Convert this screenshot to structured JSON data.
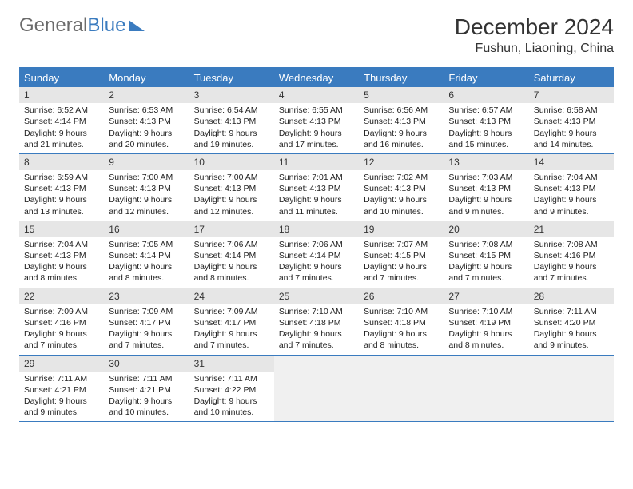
{
  "logo": {
    "part1": "General",
    "part2": "Blue"
  },
  "title": "December 2024",
  "location": "Fushun, Liaoning, China",
  "colors": {
    "accent": "#3a7bbf",
    "header_bg": "#e6e6e6",
    "empty_bg": "#f0f0f0",
    "text": "#222222",
    "logo_gray": "#6b6b6b"
  },
  "typography": {
    "title_fontsize": 28,
    "location_fontsize": 16,
    "dow_fontsize": 13,
    "body_fontsize": 10.5
  },
  "dow": [
    "Sunday",
    "Monday",
    "Tuesday",
    "Wednesday",
    "Thursday",
    "Friday",
    "Saturday"
  ],
  "weeks": [
    [
      {
        "n": "1",
        "sunrise": "Sunrise: 6:52 AM",
        "sunset": "Sunset: 4:14 PM",
        "daylight": "Daylight: 9 hours and 21 minutes."
      },
      {
        "n": "2",
        "sunrise": "Sunrise: 6:53 AM",
        "sunset": "Sunset: 4:13 PM",
        "daylight": "Daylight: 9 hours and 20 minutes."
      },
      {
        "n": "3",
        "sunrise": "Sunrise: 6:54 AM",
        "sunset": "Sunset: 4:13 PM",
        "daylight": "Daylight: 9 hours and 19 minutes."
      },
      {
        "n": "4",
        "sunrise": "Sunrise: 6:55 AM",
        "sunset": "Sunset: 4:13 PM",
        "daylight": "Daylight: 9 hours and 17 minutes."
      },
      {
        "n": "5",
        "sunrise": "Sunrise: 6:56 AM",
        "sunset": "Sunset: 4:13 PM",
        "daylight": "Daylight: 9 hours and 16 minutes."
      },
      {
        "n": "6",
        "sunrise": "Sunrise: 6:57 AM",
        "sunset": "Sunset: 4:13 PM",
        "daylight": "Daylight: 9 hours and 15 minutes."
      },
      {
        "n": "7",
        "sunrise": "Sunrise: 6:58 AM",
        "sunset": "Sunset: 4:13 PM",
        "daylight": "Daylight: 9 hours and 14 minutes."
      }
    ],
    [
      {
        "n": "8",
        "sunrise": "Sunrise: 6:59 AM",
        "sunset": "Sunset: 4:13 PM",
        "daylight": "Daylight: 9 hours and 13 minutes."
      },
      {
        "n": "9",
        "sunrise": "Sunrise: 7:00 AM",
        "sunset": "Sunset: 4:13 PM",
        "daylight": "Daylight: 9 hours and 12 minutes."
      },
      {
        "n": "10",
        "sunrise": "Sunrise: 7:00 AM",
        "sunset": "Sunset: 4:13 PM",
        "daylight": "Daylight: 9 hours and 12 minutes."
      },
      {
        "n": "11",
        "sunrise": "Sunrise: 7:01 AM",
        "sunset": "Sunset: 4:13 PM",
        "daylight": "Daylight: 9 hours and 11 minutes."
      },
      {
        "n": "12",
        "sunrise": "Sunrise: 7:02 AM",
        "sunset": "Sunset: 4:13 PM",
        "daylight": "Daylight: 9 hours and 10 minutes."
      },
      {
        "n": "13",
        "sunrise": "Sunrise: 7:03 AM",
        "sunset": "Sunset: 4:13 PM",
        "daylight": "Daylight: 9 hours and 9 minutes."
      },
      {
        "n": "14",
        "sunrise": "Sunrise: 7:04 AM",
        "sunset": "Sunset: 4:13 PM",
        "daylight": "Daylight: 9 hours and 9 minutes."
      }
    ],
    [
      {
        "n": "15",
        "sunrise": "Sunrise: 7:04 AM",
        "sunset": "Sunset: 4:13 PM",
        "daylight": "Daylight: 9 hours and 8 minutes."
      },
      {
        "n": "16",
        "sunrise": "Sunrise: 7:05 AM",
        "sunset": "Sunset: 4:14 PM",
        "daylight": "Daylight: 9 hours and 8 minutes."
      },
      {
        "n": "17",
        "sunrise": "Sunrise: 7:06 AM",
        "sunset": "Sunset: 4:14 PM",
        "daylight": "Daylight: 9 hours and 8 minutes."
      },
      {
        "n": "18",
        "sunrise": "Sunrise: 7:06 AM",
        "sunset": "Sunset: 4:14 PM",
        "daylight": "Daylight: 9 hours and 7 minutes."
      },
      {
        "n": "19",
        "sunrise": "Sunrise: 7:07 AM",
        "sunset": "Sunset: 4:15 PM",
        "daylight": "Daylight: 9 hours and 7 minutes."
      },
      {
        "n": "20",
        "sunrise": "Sunrise: 7:08 AM",
        "sunset": "Sunset: 4:15 PM",
        "daylight": "Daylight: 9 hours and 7 minutes."
      },
      {
        "n": "21",
        "sunrise": "Sunrise: 7:08 AM",
        "sunset": "Sunset: 4:16 PM",
        "daylight": "Daylight: 9 hours and 7 minutes."
      }
    ],
    [
      {
        "n": "22",
        "sunrise": "Sunrise: 7:09 AM",
        "sunset": "Sunset: 4:16 PM",
        "daylight": "Daylight: 9 hours and 7 minutes."
      },
      {
        "n": "23",
        "sunrise": "Sunrise: 7:09 AM",
        "sunset": "Sunset: 4:17 PM",
        "daylight": "Daylight: 9 hours and 7 minutes."
      },
      {
        "n": "24",
        "sunrise": "Sunrise: 7:09 AM",
        "sunset": "Sunset: 4:17 PM",
        "daylight": "Daylight: 9 hours and 7 minutes."
      },
      {
        "n": "25",
        "sunrise": "Sunrise: 7:10 AM",
        "sunset": "Sunset: 4:18 PM",
        "daylight": "Daylight: 9 hours and 7 minutes."
      },
      {
        "n": "26",
        "sunrise": "Sunrise: 7:10 AM",
        "sunset": "Sunset: 4:18 PM",
        "daylight": "Daylight: 9 hours and 8 minutes."
      },
      {
        "n": "27",
        "sunrise": "Sunrise: 7:10 AM",
        "sunset": "Sunset: 4:19 PM",
        "daylight": "Daylight: 9 hours and 8 minutes."
      },
      {
        "n": "28",
        "sunrise": "Sunrise: 7:11 AM",
        "sunset": "Sunset: 4:20 PM",
        "daylight": "Daylight: 9 hours and 9 minutes."
      }
    ],
    [
      {
        "n": "29",
        "sunrise": "Sunrise: 7:11 AM",
        "sunset": "Sunset: 4:21 PM",
        "daylight": "Daylight: 9 hours and 9 minutes."
      },
      {
        "n": "30",
        "sunrise": "Sunrise: 7:11 AM",
        "sunset": "Sunset: 4:21 PM",
        "daylight": "Daylight: 9 hours and 10 minutes."
      },
      {
        "n": "31",
        "sunrise": "Sunrise: 7:11 AM",
        "sunset": "Sunset: 4:22 PM",
        "daylight": "Daylight: 9 hours and 10 minutes."
      },
      null,
      null,
      null,
      null
    ]
  ]
}
